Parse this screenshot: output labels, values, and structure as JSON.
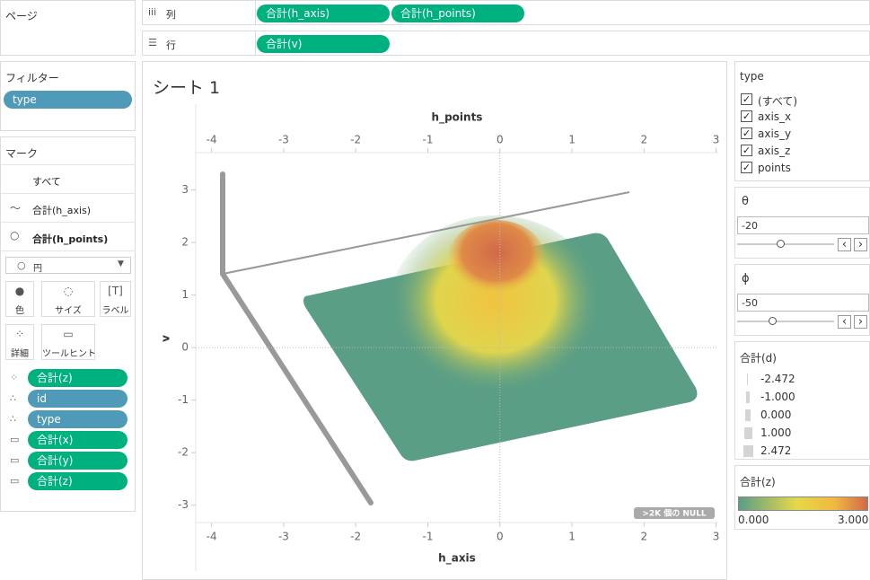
{
  "pages_shelf": {
    "title": "ページ"
  },
  "columns_shelf": {
    "label": "列",
    "pills": [
      "合計(h_axis)",
      "合計(h_points)"
    ]
  },
  "rows_shelf": {
    "label": "行",
    "pills": [
      "合計(v)"
    ]
  },
  "filters": {
    "title": "フィルター",
    "pills": [
      "type"
    ]
  },
  "marks": {
    "title": "マーク",
    "cards": [
      "すべて",
      "合計(h_axis)",
      "合計(h_points)"
    ],
    "mark_type": "円",
    "buttons": [
      "色",
      "サイズ",
      "ラベル",
      "詳細",
      "ツールヒント"
    ],
    "fields": [
      "合計(z)",
      "id",
      "type",
      "合計(x)",
      "合計(y)",
      "合計(z)"
    ]
  },
  "sheet": {
    "title": "シート 1",
    "x_axis": {
      "label": "h_axis",
      "lim": [
        -4.22,
        3.03
      ],
      "ticks": [
        -4,
        -3,
        -2,
        -1,
        0,
        1,
        2,
        3
      ]
    },
    "x2_axis": {
      "label": "h_points",
      "lim": [
        -4.22,
        3.03
      ],
      "ticks": [
        -4,
        -3,
        -2,
        -1,
        0,
        1,
        2,
        3
      ]
    },
    "y_axis": {
      "label": "v",
      "lim": [
        -3.33,
        3.71
      ],
      "ticks": [
        -3,
        -2,
        -1,
        0,
        1,
        2,
        3
      ]
    },
    "null_badge": ">2K 個の NULL"
  },
  "type_filter": {
    "title": "type",
    "options": [
      "(すべて)",
      "axis_x",
      "axis_y",
      "axis_z",
      "points"
    ]
  },
  "theta": {
    "title": "θ",
    "value": "-20"
  },
  "phi": {
    "title": "ϕ",
    "value": "-50"
  },
  "size_legend": {
    "title": "合計(d)",
    "items": [
      "-2.472",
      "-1.000",
      "0.000",
      "1.000",
      "2.472"
    ]
  },
  "color_legend": {
    "title": "合計(z)",
    "min": "0.000",
    "max": "3.000"
  }
}
